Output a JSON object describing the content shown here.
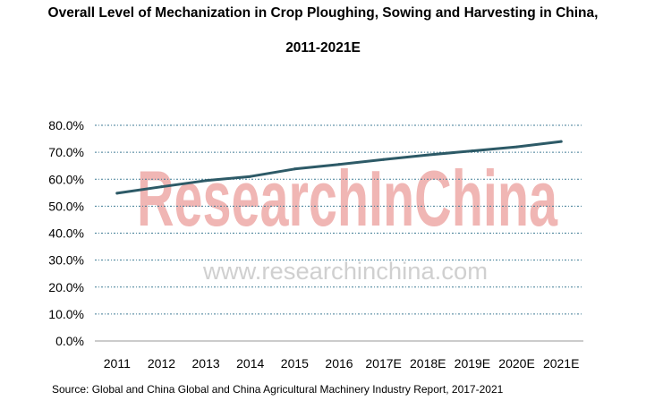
{
  "title_line1": "Overall Level of Mechanization in Crop Ploughing, Sowing and Harvesting in China,",
  "title_line2": "2011-2021E",
  "source": "Source: Global and China Global and China Agricultural Machinery Industry Report, 2017-2021",
  "watermark": {
    "logo_text": "ResearchInChina",
    "url_text": "www.researchinchina.com"
  },
  "colors": {
    "line": "#2d5a67",
    "grid": "#3d7a93",
    "axis": "#999999",
    "watermark_red": "#f0b6b4",
    "watermark_gray": "#d0d0d0"
  },
  "chart_data": {
    "type": "line",
    "title": "Overall Level of Mechanization in Crop Ploughing, Sowing and Harvesting in China, 2011-2021E",
    "xlabel": "",
    "ylabel": "",
    "categories": [
      "2011",
      "2012",
      "2013",
      "2014",
      "2015",
      "2016",
      "2017E",
      "2018E",
      "2019E",
      "2020E",
      "2021E"
    ],
    "series": [
      {
        "values": [
          54.8,
          57.2,
          59.5,
          61.0,
          63.8,
          65.5,
          67.3,
          69.0,
          70.5,
          72.0,
          74.0
        ]
      }
    ],
    "ylim": [
      0,
      80
    ],
    "yticks": [
      "0.0%",
      "10.0%",
      "20.0%",
      "30.0%",
      "40.0%",
      "50.0%",
      "60.0%",
      "70.0%",
      "80.0%"
    ],
    "grid": "horizontal dotted",
    "legend": "none"
  }
}
